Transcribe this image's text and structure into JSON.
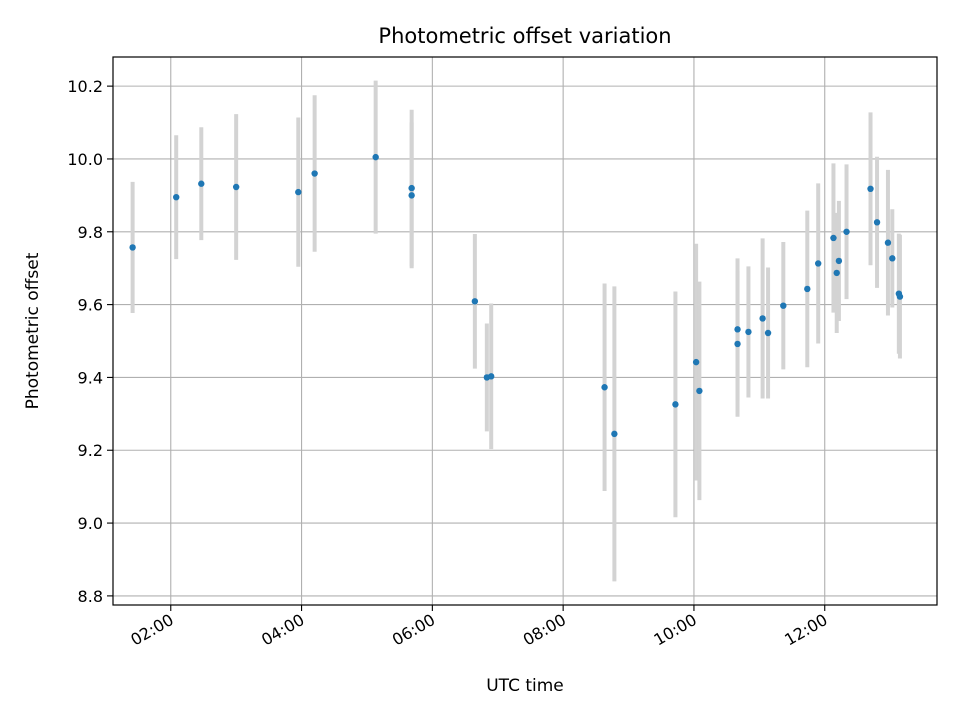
{
  "chart_data": {
    "type": "scatter",
    "title": "Photometric offset variation",
    "xlabel": "UTC time",
    "ylabel": "Photometric offset",
    "xlim": [
      "01:07",
      "13:43"
    ],
    "ylim": [
      8.775,
      10.28
    ],
    "grid": true,
    "x_ticks": [
      "02:00",
      "04:00",
      "06:00",
      "08:00",
      "10:00",
      "12:00"
    ],
    "y_ticks": [
      "8.8",
      "9.0",
      "9.2",
      "9.4",
      "9.6",
      "9.8",
      "10.0",
      "10.2"
    ],
    "colors": {
      "point": "#1f77b4",
      "errorbar": "#d3d3d3",
      "grid": "#b0b0b0"
    },
    "points": [
      {
        "time": "01:25",
        "y": 9.757,
        "err": 0.18
      },
      {
        "time": "02:05",
        "y": 9.895,
        "err": 0.17
      },
      {
        "time": "02:28",
        "y": 9.932,
        "err": 0.155
      },
      {
        "time": "03:00",
        "y": 9.923,
        "err": 0.2
      },
      {
        "time": "03:57",
        "y": 9.909,
        "err": 0.205
      },
      {
        "time": "04:12",
        "y": 9.96,
        "err": 0.215
      },
      {
        "time": "05:08",
        "y": 10.005,
        "err": 0.21
      },
      {
        "time": "05:41",
        "y": 9.92,
        "err": 0.215
      },
      {
        "time": "05:41",
        "y": 9.9,
        "err": 0.2
      },
      {
        "time": "06:39",
        "y": 9.609,
        "err": 0.185
      },
      {
        "time": "06:50",
        "y": 9.4,
        "err": 0.148
      },
      {
        "time": "06:54",
        "y": 9.403,
        "err": 0.2
      },
      {
        "time": "08:38",
        "y": 9.373,
        "err": 0.285
      },
      {
        "time": "08:47",
        "y": 9.245,
        "err": 0.405
      },
      {
        "time": "09:43",
        "y": 9.326,
        "err": 0.31
      },
      {
        "time": "10:02",
        "y": 9.442,
        "err": 0.325
      },
      {
        "time": "10:05",
        "y": 9.363,
        "err": 0.3
      },
      {
        "time": "10:40",
        "y": 9.492,
        "err": 0.2
      },
      {
        "time": "10:40",
        "y": 9.532,
        "err": 0.195
      },
      {
        "time": "10:50",
        "y": 9.525,
        "err": 0.18
      },
      {
        "time": "11:03",
        "y": 9.562,
        "err": 0.22
      },
      {
        "time": "11:08",
        "y": 9.522,
        "err": 0.18
      },
      {
        "time": "11:22",
        "y": 9.597,
        "err": 0.175
      },
      {
        "time": "11:44",
        "y": 9.643,
        "err": 0.215
      },
      {
        "time": "11:54",
        "y": 9.713,
        "err": 0.22
      },
      {
        "time": "12:08",
        "y": 9.783,
        "err": 0.205
      },
      {
        "time": "12:11",
        "y": 9.687,
        "err": 0.165
      },
      {
        "time": "12:13",
        "y": 9.72,
        "err": 0.165
      },
      {
        "time": "12:20",
        "y": 9.8,
        "err": 0.185
      },
      {
        "time": "12:42",
        "y": 9.918,
        "err": 0.21
      },
      {
        "time": "12:48",
        "y": 9.826,
        "err": 0.18
      },
      {
        "time": "12:58",
        "y": 9.77,
        "err": 0.2
      },
      {
        "time": "13:02",
        "y": 9.727,
        "err": 0.135
      },
      {
        "time": "13:08",
        "y": 9.63,
        "err": 0.165
      },
      {
        "time": "13:09",
        "y": 9.622,
        "err": 0.17
      }
    ]
  }
}
